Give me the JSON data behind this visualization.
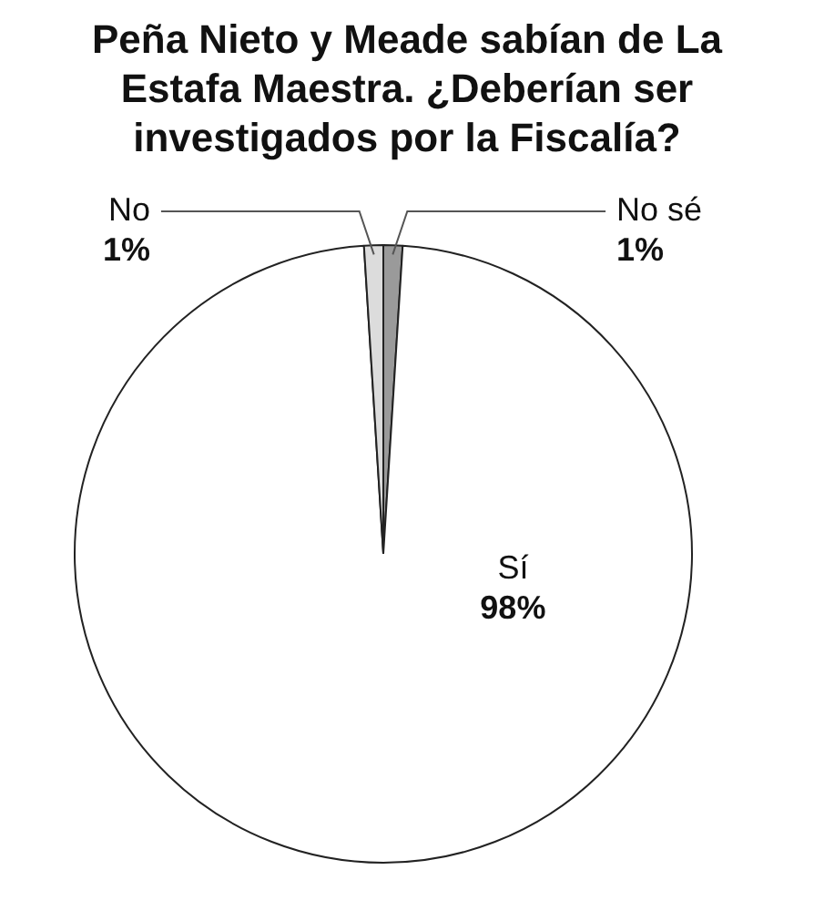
{
  "chart_data": {
    "type": "pie",
    "title": "Peña Nieto y Meade sabían de La Estafa Maestra. ¿Deberían ser investigados por la Fiscalía?",
    "categories": [
      "No sé",
      "Sí",
      "No"
    ],
    "values": [
      1,
      98,
      1
    ],
    "value_labels": [
      "1%",
      "98%",
      "1%"
    ],
    "colors": [
      "#9a9a9a",
      "#ffffff",
      "#dcdcdc"
    ],
    "legend": false
  }
}
